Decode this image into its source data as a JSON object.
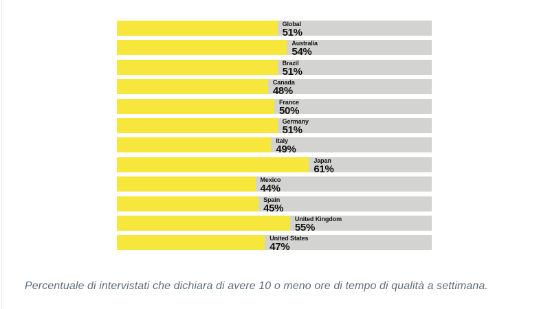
{
  "chart_data": {
    "type": "bar",
    "orientation": "horizontal",
    "categories": [
      "Global",
      "Australia",
      "Brazil",
      "Canada",
      "France",
      "Germany",
      "Italy",
      "Japan",
      "Mexico",
      "Spain",
      "United Kingdom",
      "United States"
    ],
    "values": [
      51,
      54,
      51,
      48,
      50,
      51,
      49,
      61,
      44,
      45,
      55,
      47
    ],
    "value_suffix": "%",
    "xlim": [
      0,
      100
    ],
    "grid": false,
    "legend": "none",
    "bar_fill_color": "#F7E73C",
    "bar_track_color": "#D3D3D1",
    "label_color": "#111111",
    "caption": "Percentuale di intervistati che dichiara di avere 10 o meno ore di tempo di qualità a settimana."
  },
  "caption_style": {
    "color": "#5C6D7E"
  }
}
